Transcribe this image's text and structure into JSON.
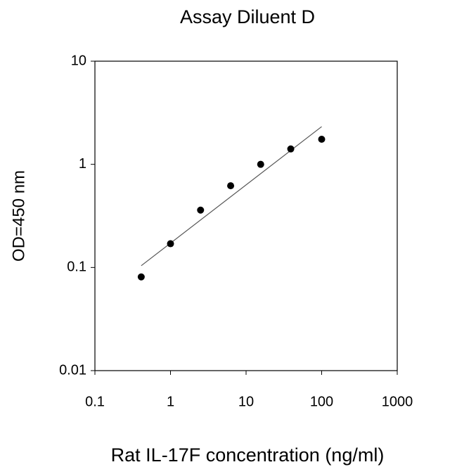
{
  "chart_data": {
    "type": "scatter",
    "title": "Assay Diluent D",
    "x_label": "Rat IL-17F concentration (ng/ml)",
    "y_label": "OD=450 nm",
    "x": [
      0.41,
      1,
      2.5,
      6.25,
      15.6,
      39,
      100
    ],
    "values": [
      0.081,
      0.17,
      0.36,
      0.62,
      1.0,
      1.41,
      1.75
    ],
    "color": "#000000",
    "fit_line": {
      "x": [
        0.41,
        100
      ],
      "values": [
        0.104,
        2.32
      ],
      "color": "#555555"
    },
    "xlim": [
      0.1,
      1000
    ],
    "ylim": [
      0.01,
      10
    ],
    "xticks": [
      0.1,
      1,
      10,
      100,
      1000
    ],
    "yticks": [
      0.01,
      0.1,
      1,
      10
    ],
    "log_x": true,
    "log_y": true,
    "grid": false
  }
}
